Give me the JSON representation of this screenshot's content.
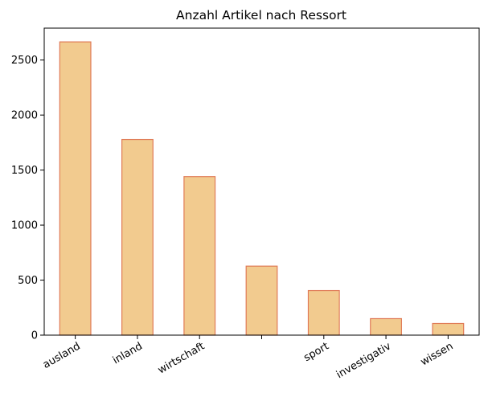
{
  "chart_data": {
    "type": "bar",
    "title": "Anzahl Artikel nach Ressort",
    "xlabel": "",
    "ylabel": "",
    "categories": [
      "ausland",
      "inland",
      "wirtschaft",
      "",
      "sport",
      "investigativ",
      "wissen"
    ],
    "values": [
      2665,
      1778,
      1441,
      627,
      405,
      150,
      106
    ],
    "ylim": [
      0,
      2790
    ],
    "yticks": [
      0,
      500,
      1000,
      1500,
      2000,
      2500
    ],
    "grid": false,
    "legend": "none",
    "bar_fill": "#f2cb8f",
    "bar_edge": "#e07b57"
  }
}
